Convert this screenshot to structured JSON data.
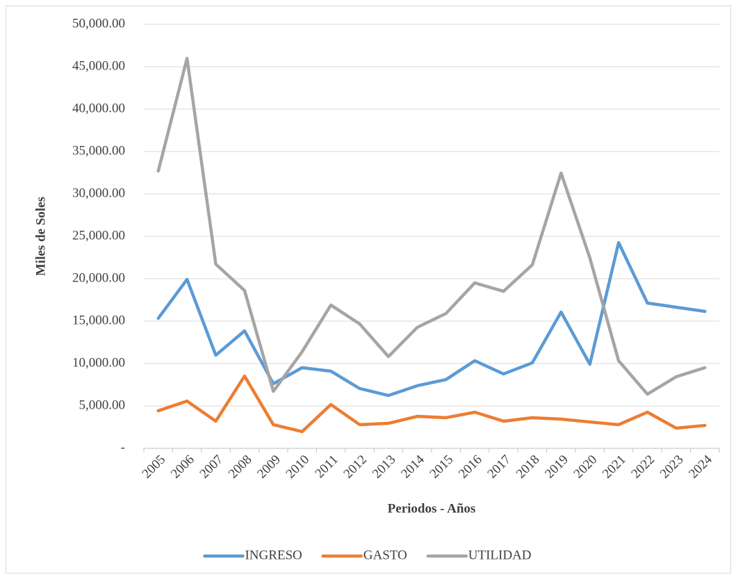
{
  "chart_data": {
    "type": "line",
    "x_label": "Periodos - Años",
    "y_label": "Miles de Soles",
    "categories": [
      "2005",
      "2006",
      "2007",
      "2008",
      "2009",
      "2010",
      "2011",
      "2012",
      "2013",
      "2014",
      "2015",
      "2016",
      "2017",
      "2018",
      "2019",
      "2020",
      "2021",
      "2022",
      "2023",
      "2024"
    ],
    "series": [
      {
        "name": "INGRESO",
        "color": "#5b9bd5",
        "values": [
          15330,
          19920,
          10980,
          13850,
          7620,
          9510,
          9100,
          7050,
          6230,
          7380,
          8110,
          10330,
          8770,
          10080,
          16070,
          9920,
          24260,
          17130,
          16640,
          16150
        ]
      },
      {
        "name": "GASTO",
        "color": "#ed7d31",
        "values": [
          4430,
          5570,
          3200,
          8520,
          2790,
          1970,
          5160,
          2790,
          2950,
          3770,
          3610,
          4260,
          3200,
          3610,
          3440,
          3110,
          2790,
          4260,
          2380,
          2700
        ]
      },
      {
        "name": "UTILIDAD",
        "color": "#a5a5a5",
        "values": [
          32700,
          45980,
          21720,
          18610,
          6720,
          11390,
          16890,
          14670,
          10820,
          14260,
          15900,
          19510,
          18520,
          21640,
          32460,
          22460,
          10330,
          6390,
          8440,
          9510
        ]
      }
    ],
    "ylim": [
      0,
      50000
    ],
    "yticks": [
      {
        "value": 0,
        "label": "-"
      },
      {
        "value": 5000,
        "label": "5,000.00"
      },
      {
        "value": 10000,
        "label": "10,000.00"
      },
      {
        "value": 15000,
        "label": "15,000.00"
      },
      {
        "value": 20000,
        "label": "20,000.00"
      },
      {
        "value": 25000,
        "label": "25,000.00"
      },
      {
        "value": 30000,
        "label": "30,000.00"
      },
      {
        "value": 35000,
        "label": "35,000.00"
      },
      {
        "value": 40000,
        "label": "40,000.00"
      },
      {
        "value": 45000,
        "label": "45,000.00"
      },
      {
        "value": 50000,
        "label": "50,000.00"
      }
    ],
    "grid": true,
    "legend": "bottom"
  }
}
